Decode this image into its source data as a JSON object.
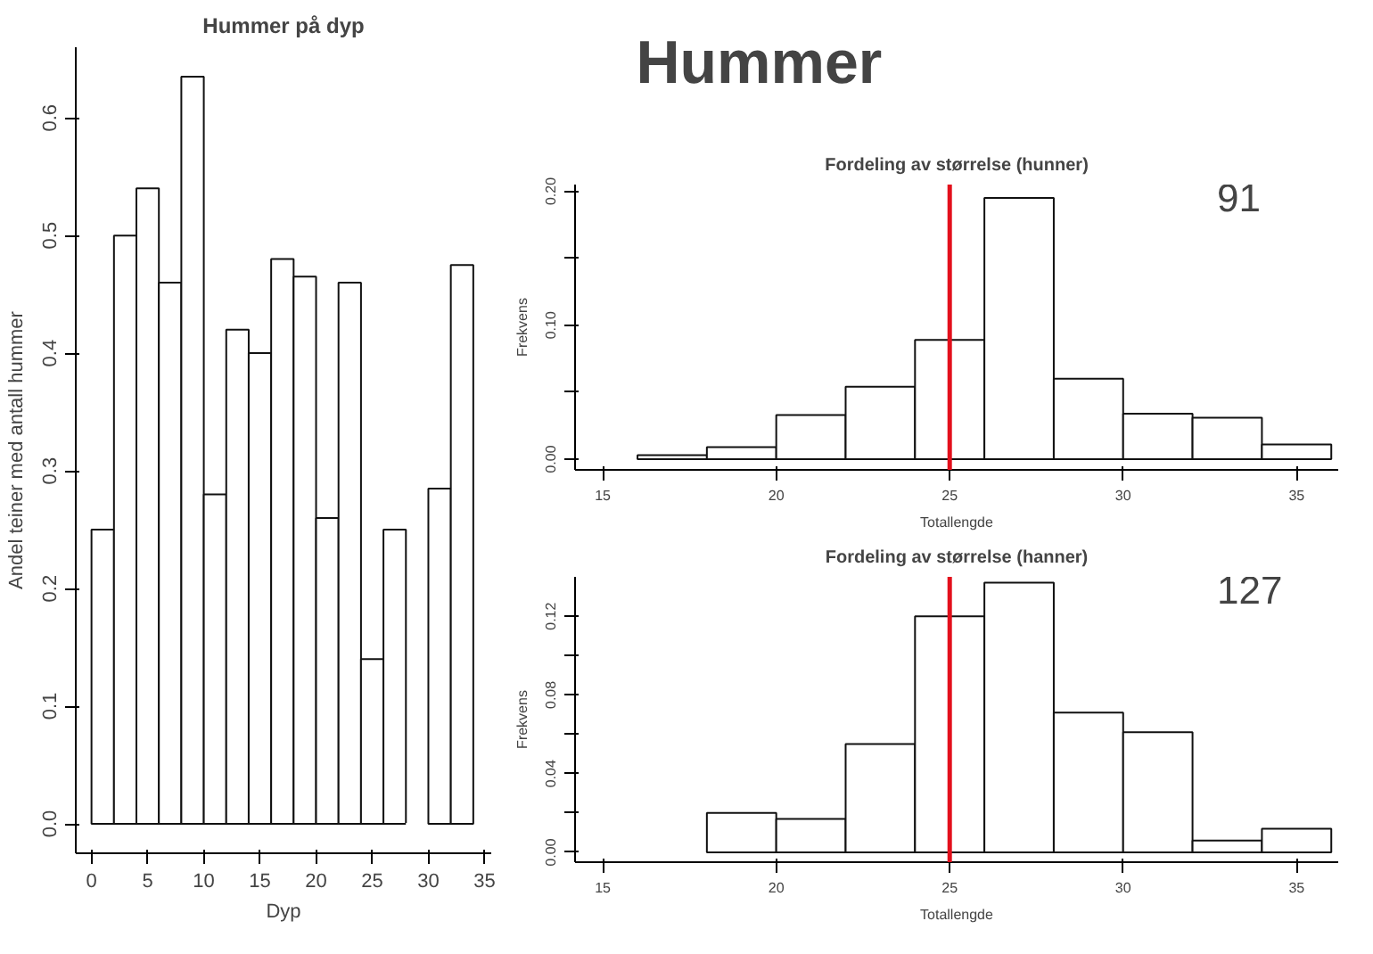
{
  "chart_data": [
    {
      "type": "other",
      "title": "Hummer"
    },
    {
      "type": "histogram",
      "title": "Hummer på dyp",
      "xlabel": "Dyp",
      "ylabel": "Andel teiner med antall hummer",
      "bins": [
        0,
        2,
        4,
        6,
        8,
        10,
        12,
        14,
        16,
        18,
        20,
        22,
        24,
        26,
        28,
        30,
        32,
        34
      ],
      "values": [
        0.25,
        0.5,
        0.54,
        0.46,
        0.635,
        0.28,
        0.42,
        0.4,
        0.48,
        0.465,
        0.26,
        0.46,
        0.14,
        0.25,
        0,
        0.285,
        0.475
      ],
      "color": "#ffffff",
      "xlim": [
        -1.4,
        35.6
      ],
      "xticks": [
        0,
        5,
        10,
        15,
        20,
        25,
        30,
        35
      ],
      "ylim": [
        -0.025,
        0.66
      ],
      "yticks": [
        {
          "value": 0,
          "label": "0.0"
        },
        0.1,
        0.2,
        0.3,
        0.4,
        0.5,
        0.6
      ],
      "grid": false
    },
    {
      "type": "histogram",
      "title": "Fordeling av størrelse (hunner)",
      "xlabel": "Totallengde",
      "ylabel": "Frekvens",
      "bins": [
        16,
        18,
        20,
        22,
        24,
        26,
        28,
        30,
        32,
        34,
        36
      ],
      "values": [
        0.003,
        0.009,
        0.033,
        0.054,
        0.089,
        0.195,
        0.06,
        0.034,
        0.031,
        0.011
      ],
      "color": "#ffffff",
      "xlim": [
        14.2,
        36.2
      ],
      "xticks": [
        15,
        20,
        25,
        30,
        35
      ],
      "ylim": [
        -0.008,
        0.205
      ],
      "yticks": [
        {
          "value": 0,
          "label": "0.00"
        },
        {
          "value": 0.05,
          "label": null
        },
        {
          "value": 0.1,
          "label": "0.10"
        },
        {
          "value": 0.15,
          "label": null
        },
        {
          "value": 0.2,
          "label": "0.20"
        }
      ],
      "ref_lines": [
        {
          "axis": "x",
          "value": 25,
          "color": "#e3101c"
        }
      ],
      "annotations": [
        "91"
      ],
      "grid": false
    },
    {
      "type": "histogram",
      "title": "Fordeling av størrelse (hanner)",
      "xlabel": "Totallengde",
      "ylabel": "Frekvens",
      "bins": [
        18,
        20,
        22,
        24,
        26,
        28,
        30,
        32,
        34,
        36
      ],
      "values": [
        0.02,
        0.017,
        0.055,
        0.12,
        0.137,
        0.071,
        0.061,
        0.006,
        0.012
      ],
      "color": "#ffffff",
      "xlim": [
        14.2,
        36.2
      ],
      "xticks": [
        15,
        20,
        25,
        30,
        35
      ],
      "ylim": [
        -0.005,
        0.14
      ],
      "yticks": [
        {
          "value": 0,
          "label": "0.00"
        },
        {
          "value": 0.02,
          "label": null
        },
        0.04,
        {
          "value": 0.06,
          "label": null
        },
        0.08,
        {
          "value": 0.1,
          "label": null
        },
        0.12
      ],
      "ref_lines": [
        {
          "axis": "x",
          "value": 25,
          "color": "#e3101c"
        }
      ],
      "annotations": [
        "127"
      ],
      "grid": false
    }
  ]
}
